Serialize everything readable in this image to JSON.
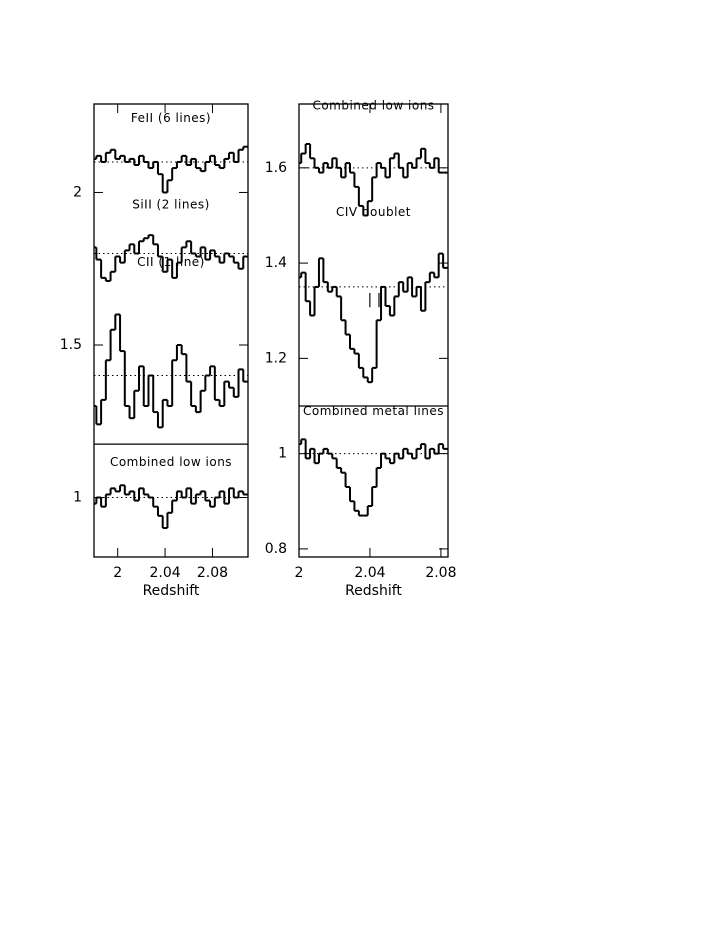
{
  "chart_data": [
    {
      "type": "step",
      "xlabel": "Redshift",
      "xlim": [
        1.98,
        2.11
      ],
      "ylim": [
        0.805,
        2.29
      ],
      "xticks": [
        2,
        2.04,
        2.08
      ],
      "yticks": [
        1,
        1.5,
        2
      ],
      "divider": 1.175,
      "x": [
        1.98,
        1.984,
        1.988,
        1.992,
        1.996,
        2.0,
        2.004,
        2.008,
        2.012,
        2.016,
        2.02,
        2.024,
        2.028,
        2.032,
        2.036,
        2.04,
        2.044,
        2.048,
        2.052,
        2.056,
        2.06,
        2.064,
        2.068,
        2.072,
        2.076,
        2.08,
        2.084,
        2.088,
        2.092,
        2.096,
        2.1,
        2.104,
        2.108
      ],
      "series": [
        {
          "name": "FeII (6 lines)",
          "color": "#000000",
          "baseline": 2.1,
          "values": [
            2.11,
            2.12,
            2.1,
            2.13,
            2.14,
            2.11,
            2.12,
            2.1,
            2.11,
            2.09,
            2.12,
            2.1,
            2.08,
            2.1,
            2.06,
            2.0,
            2.04,
            2.08,
            2.1,
            2.12,
            2.09,
            2.11,
            2.08,
            2.07,
            2.1,
            2.12,
            2.09,
            2.08,
            2.11,
            2.13,
            2.1,
            2.14,
            2.15
          ]
        },
        {
          "name": "SiII (2 lines)",
          "color": "#000000",
          "baseline": 1.8,
          "values": [
            1.82,
            1.78,
            1.72,
            1.71,
            1.74,
            1.79,
            1.77,
            1.81,
            1.83,
            1.8,
            1.84,
            1.85,
            1.86,
            1.83,
            1.79,
            1.74,
            1.78,
            1.72,
            1.77,
            1.82,
            1.84,
            1.8,
            1.79,
            1.82,
            1.78,
            1.81,
            1.79,
            1.77,
            1.8,
            1.79,
            1.77,
            1.75,
            1.79
          ]
        },
        {
          "name": "CII (1 line)",
          "color": "#000000",
          "baseline": 1.4,
          "values": [
            1.3,
            1.24,
            1.32,
            1.45,
            1.55,
            1.6,
            1.48,
            1.3,
            1.26,
            1.35,
            1.43,
            1.3,
            1.4,
            1.28,
            1.23,
            1.32,
            1.3,
            1.45,
            1.5,
            1.47,
            1.38,
            1.3,
            1.28,
            1.35,
            1.4,
            1.43,
            1.32,
            1.3,
            1.38,
            1.36,
            1.33,
            1.42,
            1.38
          ]
        },
        {
          "name": "Combined low ions",
          "color": "#000000",
          "baseline": 1,
          "values": [
            0.98,
            1.0,
            0.97,
            1.01,
            1.03,
            1.02,
            1.04,
            1.01,
            1.02,
            0.99,
            1.03,
            1.01,
            1.0,
            0.97,
            0.94,
            0.9,
            0.95,
            0.99,
            1.02,
            1.0,
            1.03,
            0.98,
            1.01,
            1.02,
            0.99,
            0.97,
            1.0,
            1.02,
            0.98,
            1.03,
            1.0,
            1.02,
            1.01
          ]
        }
      ]
    },
    {
      "type": "step",
      "xlabel": "Redshift",
      "xlim": [
        2,
        2.084
      ],
      "ylim": [
        0.783,
        1.734
      ],
      "xticks": [
        2,
        2.04,
        2.08
      ],
      "yticks": [
        0.8,
        1,
        1.2,
        1.4,
        1.6
      ],
      "divider": 1.1,
      "annotation": "| |",
      "x": [
        2.0,
        2.0025,
        2.005,
        2.0075,
        2.01,
        2.0125,
        2.015,
        2.0175,
        2.02,
        2.0225,
        2.025,
        2.0275,
        2.03,
        2.0325,
        2.035,
        2.0375,
        2.04,
        2.0425,
        2.045,
        2.0475,
        2.05,
        2.0525,
        2.055,
        2.0575,
        2.06,
        2.0625,
        2.065,
        2.0675,
        2.07,
        2.0725,
        2.075,
        2.0775,
        2.08,
        2.0825
      ],
      "series": [
        {
          "name": "Combined low ions",
          "color": "#000000",
          "baseline": 1.6,
          "values": [
            1.61,
            1.63,
            1.65,
            1.62,
            1.6,
            1.59,
            1.61,
            1.6,
            1.62,
            1.6,
            1.58,
            1.61,
            1.59,
            1.56,
            1.52,
            1.5,
            1.53,
            1.58,
            1.61,
            1.6,
            1.58,
            1.62,
            1.63,
            1.6,
            1.58,
            1.61,
            1.6,
            1.62,
            1.64,
            1.61,
            1.6,
            1.62,
            1.59,
            1.59
          ]
        },
        {
          "name": "CIV doublet",
          "color": "#000000",
          "baseline": 1.35,
          "values": [
            1.37,
            1.38,
            1.32,
            1.29,
            1.35,
            1.41,
            1.36,
            1.34,
            1.35,
            1.33,
            1.28,
            1.25,
            1.22,
            1.21,
            1.18,
            1.16,
            1.15,
            1.18,
            1.28,
            1.35,
            1.31,
            1.29,
            1.33,
            1.36,
            1.34,
            1.37,
            1.33,
            1.35,
            1.3,
            1.36,
            1.38,
            1.37,
            1.42,
            1.39
          ]
        },
        {
          "name": "Combined metal lines",
          "color": "#000000",
          "baseline": 1,
          "values": [
            1.02,
            1.03,
            0.99,
            1.01,
            0.98,
            1.0,
            1.01,
            1.0,
            0.99,
            0.97,
            0.96,
            0.93,
            0.9,
            0.88,
            0.87,
            0.87,
            0.89,
            0.93,
            0.97,
            1.0,
            0.99,
            0.98,
            1.0,
            0.99,
            1.01,
            1.0,
            0.99,
            1.01,
            1.02,
            0.99,
            1.01,
            1.0,
            1.02,
            1.01
          ]
        }
      ]
    }
  ]
}
